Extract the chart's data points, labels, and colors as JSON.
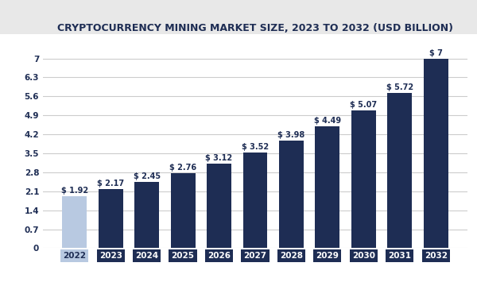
{
  "title": "CRYPTOCURRENCY MINING MARKET SIZE, 2023 TO 2032 (USD BILLION)",
  "categories": [
    "2022",
    "2023",
    "2024",
    "2025",
    "2026",
    "2027",
    "2028",
    "2029",
    "2030",
    "2031",
    "2032"
  ],
  "values": [
    1.92,
    2.17,
    2.45,
    2.76,
    3.12,
    3.52,
    3.98,
    4.49,
    5.07,
    5.72,
    7.0
  ],
  "labels": [
    "$ 1.92",
    "$ 2.17",
    "$ 2.45",
    "$ 2.76",
    "$ 3.12",
    "$ 3.52",
    "$ 3.98",
    "$ 4.49",
    "$ 5.07",
    "$ 5.72",
    "$ 7"
  ],
  "bar_colors": [
    "#b8c9e1",
    "#1e2d54",
    "#1e2d54",
    "#1e2d54",
    "#1e2d54",
    "#1e2d54",
    "#1e2d54",
    "#1e2d54",
    "#1e2d54",
    "#1e2d54",
    "#1e2d54"
  ],
  "yticks": [
    0,
    0.7,
    1.4,
    2.1,
    2.8,
    3.5,
    4.2,
    4.9,
    5.6,
    6.3,
    7.0
  ],
  "ylim": [
    0,
    7.7
  ],
  "figure_bg": "#ffffff",
  "plot_bg": "#ffffff",
  "title_bg": "#e8e8e8",
  "title_fontsize": 9.0,
  "grid_color": "#cccccc",
  "ytick_color": "#1e2d54",
  "bar_label_color": "#1e2d54",
  "xtick_label_dark_bg": "#1e2d54",
  "xtick_label_light_bg": "#b8c9e1",
  "label_fontsize": 7.0,
  "ytick_fontsize": 7.5,
  "xtick_fontsize": 7.5
}
